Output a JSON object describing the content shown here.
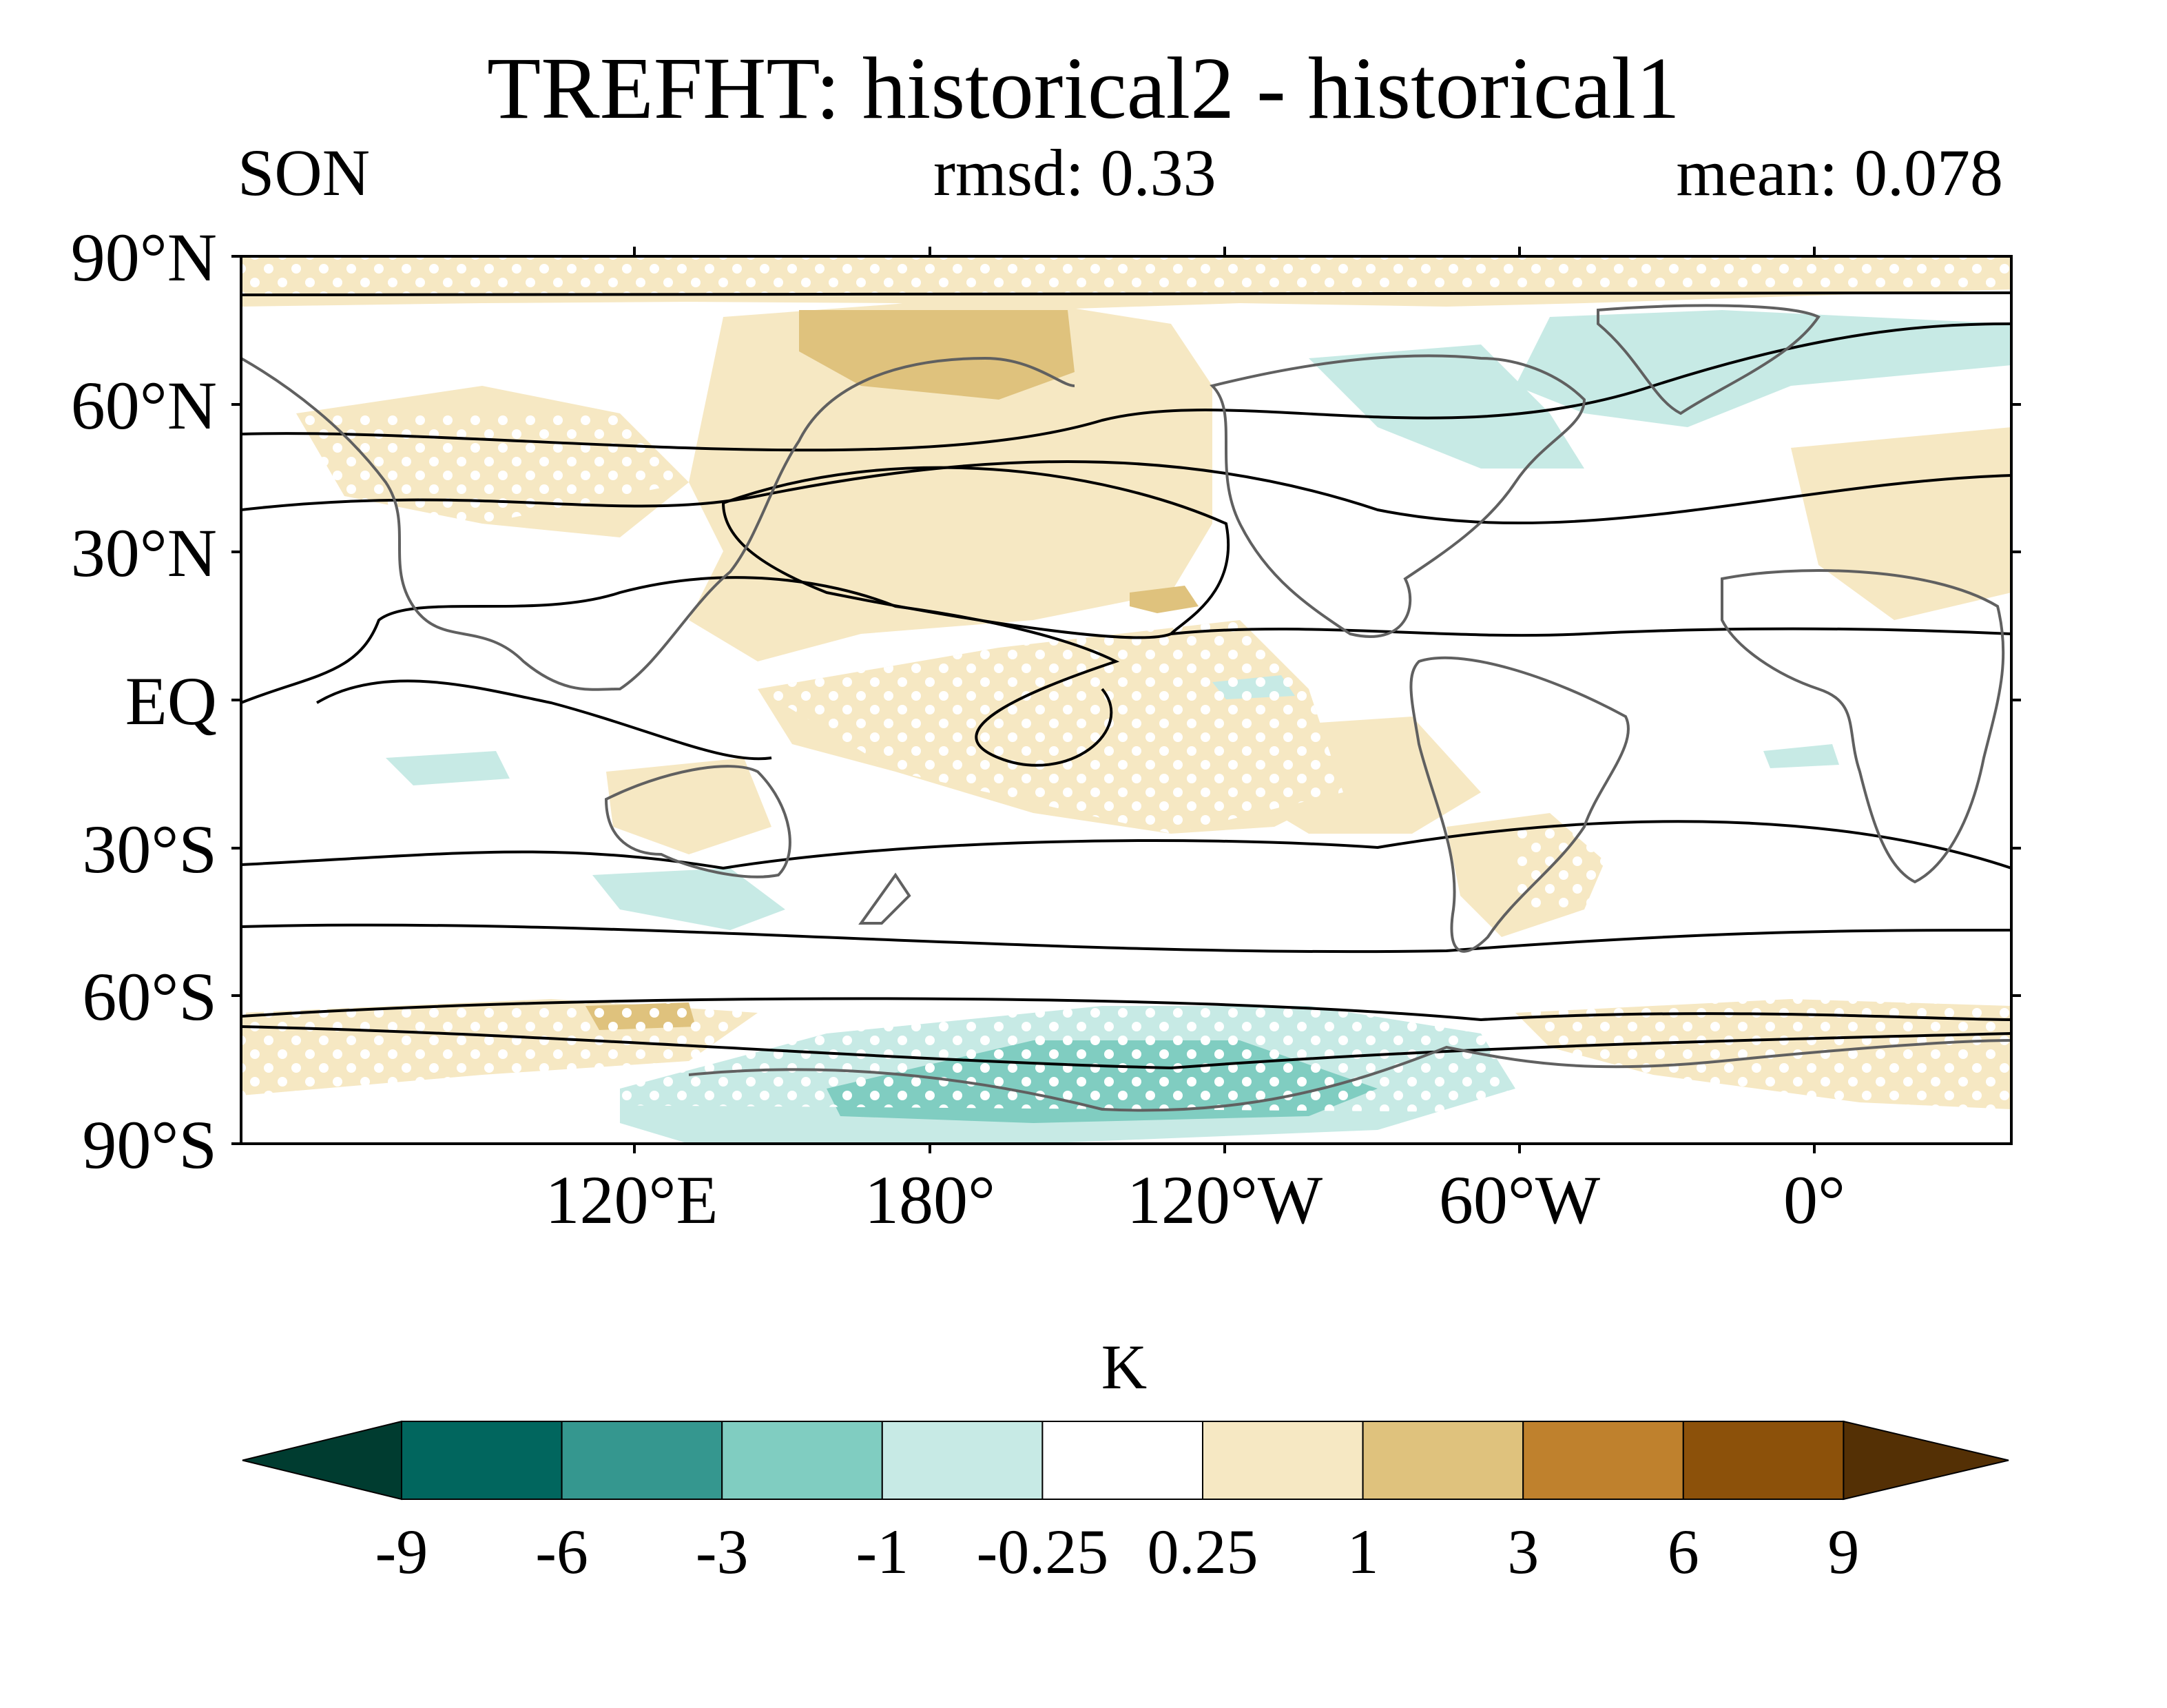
{
  "title": "TREFHT: historical2 - historical1",
  "season": "SON",
  "rmsd": "rmsd: 0.33",
  "mean": "mean: 0.078",
  "lat_ticks": [
    "90°N",
    "60°N",
    "30°N",
    "EQ",
    "30°S",
    "60°S",
    "90°S"
  ],
  "lon_ticks": [
    "120°E",
    "180°",
    "120°W",
    "60°W",
    "0°"
  ],
  "colorbar": {
    "unit": "K",
    "levels": [
      "-9",
      "-6",
      "-3",
      "-1",
      "-0.25",
      "0.25",
      "1",
      "3",
      "6",
      "9"
    ],
    "colors": [
      "#003c30",
      "#01665e",
      "#35978f",
      "#80cdc1",
      "#c7eae5",
      "#ffffff",
      "#f6e8c3",
      "#dfc27d",
      "#bf812d",
      "#8c510a",
      "#543005"
    ]
  }
}
